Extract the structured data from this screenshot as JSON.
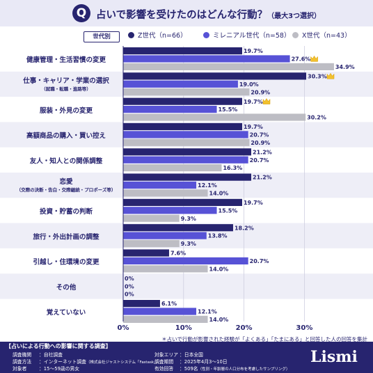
{
  "header": {
    "q_mark": "Q",
    "title": "占いで影響を受けたのはどんな行動？",
    "title_note": "（最大3つ選択）"
  },
  "legend": {
    "label": "世代別",
    "items": [
      {
        "name": "Z世代（n=66）",
        "color": "#27246f"
      },
      {
        "name": "ミレニアル世代（n=58）",
        "color": "#5752d6"
      },
      {
        "name": "X世代（n=43）",
        "color": "#bdbdc4"
      }
    ]
  },
  "chart_data": {
    "type": "bar",
    "orientation": "horizontal",
    "categories": [
      {
        "label": "健康管理・生活習慣の変更",
        "sublabel": ""
      },
      {
        "label": "仕事・キャリア・学業の選択",
        "sublabel": "（就職・転職・進路等）"
      },
      {
        "label": "服装・外見の変更",
        "sublabel": ""
      },
      {
        "label": "高額商品の購入・買い控え",
        "sublabel": ""
      },
      {
        "label": "友人・知人との関係調整",
        "sublabel": ""
      },
      {
        "label": "恋愛",
        "sublabel": "（交際の決断・告白・交際継続・プロポーズ等）"
      },
      {
        "label": "投資・貯蓄の判断",
        "sublabel": ""
      },
      {
        "label": "旅行・外出計画の調整",
        "sublabel": ""
      },
      {
        "label": "引越し・住環境の変更",
        "sublabel": ""
      },
      {
        "label": "その他",
        "sublabel": ""
      },
      {
        "label": "覚えていない",
        "sublabel": ""
      }
    ],
    "series": [
      {
        "name": "Z世代（n=66）",
        "color": "#27246f",
        "values": [
          19.7,
          30.3,
          19.7,
          19.7,
          21.2,
          21.2,
          19.7,
          18.2,
          7.6,
          0,
          6.1
        ]
      },
      {
        "name": "ミレニアル世代（n=58）",
        "color": "#5752d6",
        "values": [
          27.6,
          19.0,
          15.5,
          20.7,
          20.7,
          12.1,
          15.5,
          13.8,
          20.7,
          0,
          12.1
        ]
      },
      {
        "name": "X世代（n=43）",
        "color": "#bdbdc4",
        "values": [
          34.9,
          20.9,
          30.2,
          20.9,
          16.3,
          14.0,
          9.3,
          9.3,
          14.0,
          0,
          14.0
        ]
      }
    ],
    "value_labels": [
      [
        "19.7%",
        "30.3%",
        "19.7%",
        "19.7%",
        "21.2%",
        "21.2%",
        "19.7%",
        "18.2%",
        "7.6%",
        "0%",
        "6.1%"
      ],
      [
        "27.6%",
        "19.0%",
        "15.5%",
        "20.7%",
        "20.7%",
        "12.1%",
        "15.5%",
        "13.8%",
        "20.7%",
        "0%",
        "12.1%"
      ],
      [
        "34.9%",
        "20.9%",
        "30.2%",
        "20.9%",
        "16.3%",
        "14.0%",
        "9.3%",
        "9.3%",
        "14.0%",
        "0%",
        "14.0%"
      ]
    ],
    "crowned": [
      [
        1,
        0
      ],
      [
        0,
        1
      ],
      [
        0,
        2
      ]
    ],
    "crown_icon": "crown-icon",
    "xlim": [
      0,
      35
    ],
    "xticks": [
      0,
      10,
      20,
      30
    ],
    "xtick_labels": [
      "0%",
      "10%",
      "20%",
      "30%"
    ],
    "grid": true,
    "legend_position": "top"
  },
  "footnote": "＊占いで行動が影響された経験が「よくある」「たまにある」と回答した人の回答を集計",
  "footer": {
    "title": "【占いによる行動への影響に関する調査】",
    "method_key": "調査機関",
    "method_val": "：自社調査",
    "type_key": "調査方法",
    "type_val": "：インターネット調査",
    "type_note": "（株式会社ジャストシステム「Fastask」）",
    "target_key": "対象者",
    "target_val": "：15～59歳の男女",
    "area_key": "対象エリア",
    "area_val": "：日本全国",
    "period_key": "調査期間",
    "period_val": "：2025年4月3～10日",
    "valid_key": "有効回答",
    "valid_val": "：509名",
    "valid_note": "（性別・年齢層の人口分布を考慮したサンプリング）",
    "logo": "Lismi"
  }
}
